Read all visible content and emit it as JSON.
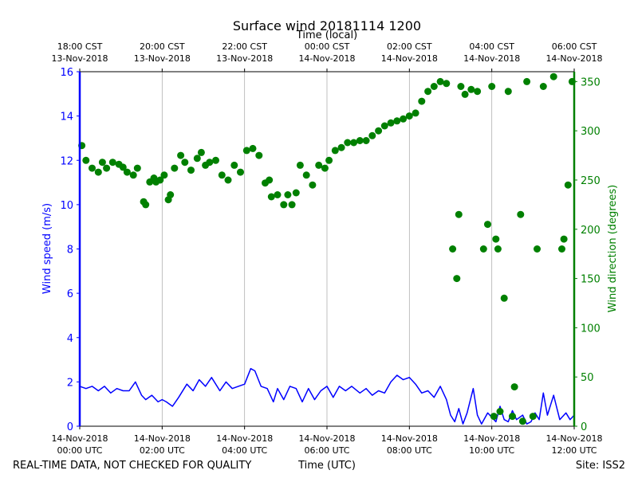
{
  "chart_data": {
    "type": "line",
    "title": "Surface wind 20181114 1200",
    "top_axis_label": "Time (local)",
    "x_axis_label": "Time (UTC)",
    "left_axis_label": "Wind speed (m/s)",
    "right_axis_label": "Wind direction (degrees)",
    "footer_left": "REAL-TIME DATA, NOT CHECKED FOR QUALITY",
    "footer_right": "Site: ISS2",
    "x_range_hours_utc": [
      0,
      12
    ],
    "speed_ylim": [
      0,
      16
    ],
    "direction_ylim": [
      0,
      360
    ],
    "grid": "vertical",
    "colors": {
      "speed": "#0000ff",
      "direction": "#008000",
      "grid": "#b0b0b0"
    },
    "bottom_ticks": [
      {
        "hour": 0,
        "line1": "14-Nov-2018",
        "line2": "00:00 UTC"
      },
      {
        "hour": 2,
        "line1": "14-Nov-2018",
        "line2": "02:00 UTC"
      },
      {
        "hour": 4,
        "line1": "14-Nov-2018",
        "line2": "04:00 UTC"
      },
      {
        "hour": 6,
        "line1": "14-Nov-2018",
        "line2": "06:00 UTC"
      },
      {
        "hour": 8,
        "line1": "14-Nov-2018",
        "line2": "08:00 UTC"
      },
      {
        "hour": 10,
        "line1": "14-Nov-2018",
        "line2": "10:00 UTC"
      },
      {
        "hour": 12,
        "line1": "14-Nov-2018",
        "line2": "12:00 UTC"
      }
    ],
    "top_ticks": [
      {
        "hour": 0,
        "line1": "18:00 CST",
        "line2": "13-Nov-2018"
      },
      {
        "hour": 2,
        "line1": "20:00 CST",
        "line2": "13-Nov-2018"
      },
      {
        "hour": 4,
        "line1": "22:00 CST",
        "line2": "13-Nov-2018"
      },
      {
        "hour": 6,
        "line1": "00:00 CST",
        "line2": "14-Nov-2018"
      },
      {
        "hour": 8,
        "line1": "02:00 CST",
        "line2": "14-Nov-2018"
      },
      {
        "hour": 10,
        "line1": "04:00 CST",
        "line2": "14-Nov-2018"
      },
      {
        "hour": 12,
        "line1": "06:00 CST",
        "line2": "14-Nov-2018"
      }
    ],
    "speed_ticks": [
      0,
      2,
      4,
      6,
      8,
      10,
      12,
      14,
      16
    ],
    "direction_ticks": [
      0,
      50,
      100,
      150,
      200,
      250,
      300,
      350
    ],
    "series": [
      {
        "name": "Wind speed (m/s)",
        "kind": "line",
        "x": [
          0,
          0.15,
          0.3,
          0.45,
          0.6,
          0.75,
          0.9,
          1.05,
          1.2,
          1.35,
          1.5,
          1.6,
          1.75,
          1.9,
          2.0,
          2.1,
          2.25,
          2.4,
          2.6,
          2.75,
          2.9,
          3.05,
          3.2,
          3.4,
          3.55,
          3.7,
          3.85,
          4.0,
          4.15,
          4.25,
          4.4,
          4.55,
          4.7,
          4.8,
          4.95,
          5.1,
          5.25,
          5.4,
          5.55,
          5.7,
          5.85,
          6.0,
          6.15,
          6.3,
          6.45,
          6.6,
          6.8,
          6.95,
          7.1,
          7.25,
          7.4,
          7.55,
          7.7,
          7.85,
          8.0,
          8.15,
          8.3,
          8.45,
          8.6,
          8.75,
          8.9,
          9.0,
          9.1,
          9.2,
          9.3,
          9.4,
          9.55,
          9.65,
          9.75,
          9.9,
          10.0,
          10.1,
          10.2,
          10.3,
          10.4,
          10.5,
          10.6,
          10.75,
          10.85,
          10.95,
          11.05,
          11.15,
          11.25,
          11.35,
          11.5,
          11.65,
          11.8,
          11.9,
          12.0
        ],
        "values": [
          1.8,
          1.7,
          1.8,
          1.6,
          1.8,
          1.5,
          1.7,
          1.6,
          1.6,
          2.0,
          1.4,
          1.2,
          1.4,
          1.1,
          1.2,
          1.1,
          0.9,
          1.3,
          1.9,
          1.6,
          2.1,
          1.8,
          2.2,
          1.6,
          2.0,
          1.7,
          1.8,
          1.9,
          2.6,
          2.5,
          1.8,
          1.7,
          1.1,
          1.7,
          1.2,
          1.8,
          1.7,
          1.1,
          1.7,
          1.2,
          1.6,
          1.8,
          1.3,
          1.8,
          1.6,
          1.8,
          1.5,
          1.7,
          1.4,
          1.6,
          1.5,
          2.0,
          2.3,
          2.1,
          2.2,
          1.9,
          1.5,
          1.6,
          1.3,
          1.8,
          1.2,
          0.5,
          0.2,
          0.8,
          0.1,
          0.6,
          1.7,
          0.5,
          0.1,
          0.6,
          0.4,
          0.2,
          0.9,
          0.3,
          0.2,
          0.7,
          0.3,
          0.5,
          0.1,
          0.2,
          0.6,
          0.3,
          1.5,
          0.5,
          1.4,
          0.3,
          0.6,
          0.3,
          0.5
        ]
      },
      {
        "name": "Wind direction (degrees)",
        "kind": "points",
        "x": [
          0.05,
          0.15,
          0.3,
          0.45,
          0.55,
          0.65,
          0.8,
          0.95,
          1.05,
          1.15,
          1.3,
          1.4,
          1.55,
          1.6,
          1.7,
          1.8,
          1.85,
          1.95,
          2.05,
          2.15,
          2.2,
          2.3,
          2.45,
          2.55,
          2.7,
          2.85,
          2.95,
          3.05,
          3.15,
          3.3,
          3.45,
          3.6,
          3.75,
          3.9,
          4.05,
          4.2,
          4.35,
          4.5,
          4.6,
          4.65,
          4.8,
          4.95,
          5.05,
          5.15,
          5.25,
          5.35,
          5.5,
          5.65,
          5.8,
          5.95,
          6.05,
          6.2,
          6.35,
          6.5,
          6.65,
          6.8,
          6.95,
          7.1,
          7.25,
          7.4,
          7.55,
          7.7,
          7.85,
          8.0,
          8.15,
          8.3,
          8.45,
          8.6,
          8.75,
          8.9,
          9.05,
          9.15,
          9.2,
          9.25,
          9.35,
          9.5,
          9.65,
          9.8,
          9.9,
          10.0,
          10.05,
          10.1,
          10.15,
          10.2,
          10.3,
          10.4,
          10.5,
          10.55,
          10.7,
          10.75,
          10.85,
          11.0,
          11.1,
          11.25,
          11.5,
          11.7,
          11.75,
          11.85,
          11.95
        ],
        "values": [
          285,
          270,
          262,
          258,
          268,
          262,
          268,
          266,
          263,
          258,
          255,
          262,
          228,
          225,
          248,
          252,
          248,
          250,
          255,
          230,
          235,
          262,
          275,
          268,
          260,
          272,
          278,
          265,
          268,
          270,
          255,
          250,
          265,
          258,
          280,
          282,
          275,
          247,
          250,
          233,
          235,
          225,
          235,
          225,
          237,
          265,
          255,
          245,
          265,
          262,
          270,
          280,
          283,
          288,
          288,
          290,
          290,
          295,
          300,
          305,
          308,
          310,
          312,
          315,
          318,
          330,
          340,
          345,
          350,
          348,
          180,
          150,
          215,
          345,
          337,
          342,
          340,
          180,
          205,
          345,
          10,
          190,
          180,
          15,
          130,
          340,
          10,
          40,
          215,
          5,
          350,
          10,
          180,
          345,
          355,
          180,
          190,
          245,
          350
        ]
      }
    ]
  }
}
